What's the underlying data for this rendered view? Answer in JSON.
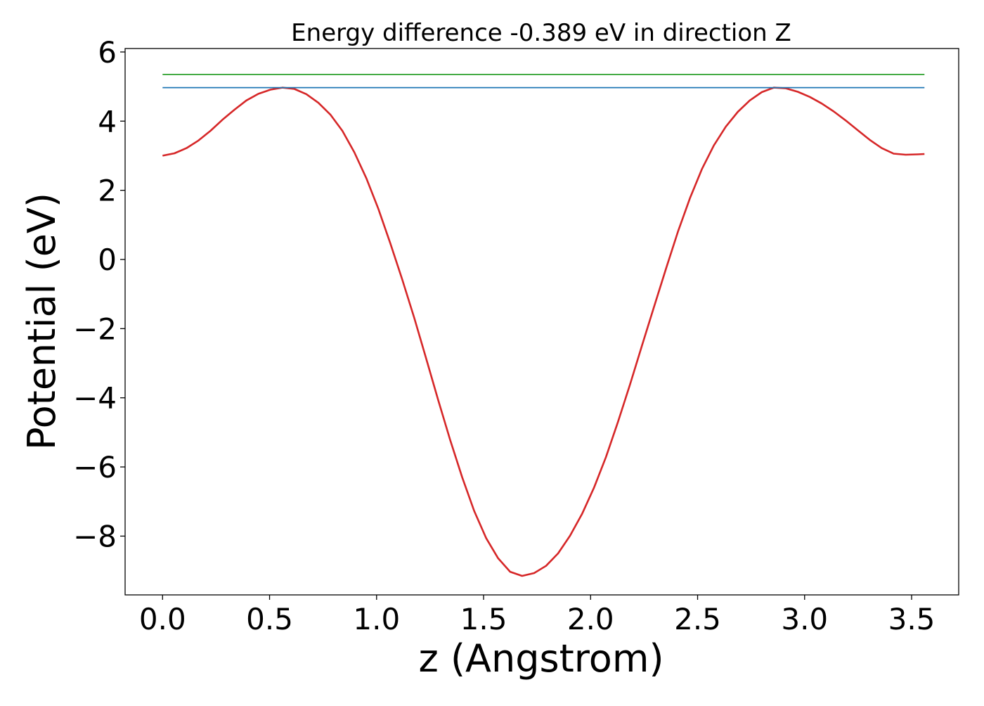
{
  "chart_data": {
    "type": "line",
    "title": "Energy difference -0.389 eV in direction Z",
    "xlabel": "z (Angstrom)",
    "ylabel": "Potential (eV)",
    "xlim": [
      -0.175,
      3.72
    ],
    "ylim": [
      -9.7,
      6.1
    ],
    "xticks": [
      0.0,
      0.5,
      1.0,
      1.5,
      2.0,
      2.5,
      3.0,
      3.5
    ],
    "xtick_labels": [
      "0.0",
      "0.5",
      "1.0",
      "1.5",
      "2.0",
      "2.5",
      "3.0",
      "3.5"
    ],
    "yticks": [
      -8,
      -6,
      -4,
      -2,
      0,
      2,
      4,
      6
    ],
    "ytick_labels": [
      "−8",
      "−6",
      "−4",
      "−2",
      "0",
      "2",
      "4",
      "6"
    ],
    "grid": false,
    "series": [
      {
        "color": "#d62728",
        "x": [
          0.0,
          0.056,
          0.112,
          0.168,
          0.224,
          0.28,
          0.336,
          0.392,
          0.448,
          0.504,
          0.56,
          0.616,
          0.672,
          0.728,
          0.784,
          0.84,
          0.896,
          0.952,
          1.008,
          1.064,
          1.12,
          1.176,
          1.232,
          1.288,
          1.344,
          1.4,
          1.456,
          1.512,
          1.568,
          1.624,
          1.68,
          1.736,
          1.792,
          1.848,
          1.904,
          1.96,
          2.016,
          2.072,
          2.128,
          2.184,
          2.24,
          2.296,
          2.352,
          2.408,
          2.464,
          2.52,
          2.576,
          2.632,
          2.688,
          2.744,
          2.8,
          2.856,
          2.912,
          2.968,
          3.024,
          3.08,
          3.136,
          3.192,
          3.248,
          3.304,
          3.36,
          3.416,
          3.472,
          3.528,
          3.56
        ],
        "y": [
          3.0,
          3.07,
          3.22,
          3.44,
          3.72,
          4.04,
          4.33,
          4.6,
          4.79,
          4.91,
          4.97,
          4.93,
          4.78,
          4.53,
          4.19,
          3.72,
          3.1,
          2.35,
          1.47,
          0.47,
          -0.58,
          -1.69,
          -2.87,
          -4.07,
          -5.22,
          -6.3,
          -7.27,
          -8.06,
          -8.64,
          -9.03,
          -9.15,
          -9.07,
          -8.86,
          -8.5,
          -7.99,
          -7.36,
          -6.6,
          -5.71,
          -4.7,
          -3.62,
          -2.49,
          -1.38,
          -0.27,
          0.8,
          1.77,
          2.61,
          3.3,
          3.84,
          4.27,
          4.6,
          4.84,
          4.97,
          4.95,
          4.85,
          4.7,
          4.51,
          4.28,
          4.02,
          3.74,
          3.46,
          3.22,
          3.06,
          3.03,
          3.04,
          3.05
        ]
      },
      {
        "color": "#1f77b4",
        "x": [
          0.0,
          3.56
        ],
        "y": [
          4.97,
          4.97
        ]
      },
      {
        "color": "#2ca02c",
        "x": [
          0.0,
          3.56
        ],
        "y": [
          5.35,
          5.35
        ]
      }
    ]
  }
}
